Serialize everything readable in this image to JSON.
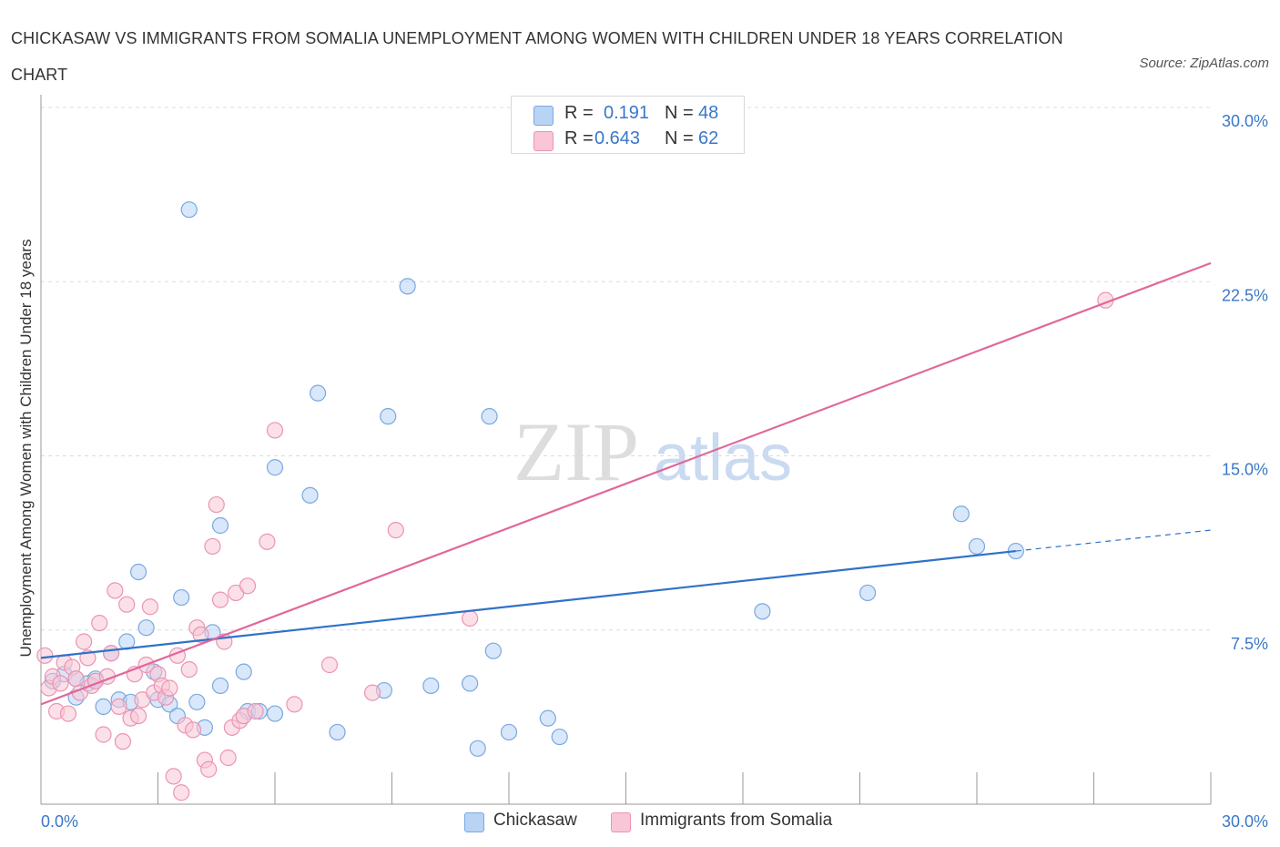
{
  "title": "CHICKASAW VS IMMIGRANTS FROM SOMALIA UNEMPLOYMENT AMONG WOMEN WITH CHILDREN UNDER 18 YEARS CORRELATION CHART",
  "source": "Source: ZipAtlas.com",
  "watermark": {
    "zip": "ZIP",
    "atlas": "atlas"
  },
  "stats": {
    "chickasaw": {
      "r_label": "R =",
      "r_value": "0.191",
      "n_label": "N =",
      "n_value": "48"
    },
    "somalia": {
      "r_label": "R =",
      "r_value": "0.643",
      "n_label": "N =",
      "n_value": "62"
    }
  },
  "legend": {
    "chickasaw": "Chickasaw",
    "somalia": "Immigrants from Somalia"
  },
  "colors": {
    "chickasaw_fill": "#b9d3f5",
    "chickasaw_stroke": "#7aa8e0",
    "chickasaw_line": "#2f72c9",
    "somalia_fill": "#f8c6d6",
    "somalia_stroke": "#eb94b2",
    "somalia_line": "#e0689a",
    "tick_label": "#3a78c9",
    "grid": "#dcdcdc"
  },
  "chart_data": {
    "type": "scatter",
    "title": "CHICKASAW VS IMMIGRANTS FROM SOMALIA UNEMPLOYMENT AMONG WOMEN WITH CHILDREN UNDER 18 YEARS CORRELATION CHART",
    "xlabel": "",
    "ylabel": "Unemployment Among Women with Children Under 18 years",
    "xlim": [
      0,
      30
    ],
    "ylim": [
      0,
      30
    ],
    "x_tick_labels": [
      "0.0%",
      "30.0%"
    ],
    "y_ticks": [
      7.5,
      15,
      22.5,
      30
    ],
    "y_tick_labels": [
      "7.5%",
      "15.0%",
      "22.5%",
      "30.0%"
    ],
    "grid": true,
    "legend_position": "bottom-center",
    "series": [
      {
        "name": "Chickasaw",
        "r": 0.191,
        "n": 48,
        "trend": {
          "x0": 0.0,
          "y0": 6.3,
          "x1": 25.0,
          "y1": 10.9,
          "dashed_to_x": 30.0,
          "dashed_to_y": 11.8
        },
        "points": [
          [
            0.3,
            5.3
          ],
          [
            0.6,
            5.6
          ],
          [
            0.9,
            5.4
          ],
          [
            0.9,
            4.6
          ],
          [
            1.2,
            5.2
          ],
          [
            1.4,
            5.4
          ],
          [
            1.6,
            4.2
          ],
          [
            1.8,
            6.5
          ],
          [
            2.0,
            4.5
          ],
          [
            2.2,
            7.0
          ],
          [
            2.3,
            4.4
          ],
          [
            2.5,
            10.0
          ],
          [
            2.7,
            7.6
          ],
          [
            2.9,
            5.7
          ],
          [
            3.0,
            4.5
          ],
          [
            3.3,
            4.3
          ],
          [
            3.5,
            3.8
          ],
          [
            3.6,
            8.9
          ],
          [
            3.8,
            25.6
          ],
          [
            4.0,
            4.4
          ],
          [
            4.2,
            3.3
          ],
          [
            4.4,
            7.4
          ],
          [
            4.6,
            5.1
          ],
          [
            4.6,
            12.0
          ],
          [
            5.2,
            5.7
          ],
          [
            5.3,
            4.0
          ],
          [
            5.6,
            4.0
          ],
          [
            6.0,
            3.9
          ],
          [
            6.0,
            14.5
          ],
          [
            6.9,
            13.3
          ],
          [
            7.1,
            17.7
          ],
          [
            7.6,
            3.1
          ],
          [
            8.8,
            4.9
          ],
          [
            8.9,
            16.7
          ],
          [
            9.4,
            22.3
          ],
          [
            10.0,
            5.1
          ],
          [
            11.0,
            5.2
          ],
          [
            11.2,
            2.4
          ],
          [
            11.5,
            16.7
          ],
          [
            11.6,
            6.6
          ],
          [
            12.0,
            3.1
          ],
          [
            13.0,
            3.7
          ],
          [
            13.3,
            2.9
          ],
          [
            18.5,
            8.3
          ],
          [
            21.2,
            9.1
          ],
          [
            23.6,
            12.5
          ],
          [
            24.0,
            11.1
          ],
          [
            25.0,
            10.9
          ]
        ]
      },
      {
        "name": "Immigrants from Somalia",
        "r": 0.643,
        "n": 62,
        "trend": {
          "x0": 0.0,
          "y0": 4.3,
          "x1": 30.0,
          "y1": 23.3
        },
        "points": [
          [
            0.1,
            6.4
          ],
          [
            0.2,
            5.0
          ],
          [
            0.3,
            5.5
          ],
          [
            0.4,
            4.0
          ],
          [
            0.5,
            5.2
          ],
          [
            0.6,
            6.1
          ],
          [
            0.7,
            3.9
          ],
          [
            0.8,
            5.9
          ],
          [
            0.9,
            5.4
          ],
          [
            1.0,
            4.8
          ],
          [
            1.1,
            7.0
          ],
          [
            1.2,
            6.3
          ],
          [
            1.3,
            5.1
          ],
          [
            1.4,
            5.3
          ],
          [
            1.5,
            7.8
          ],
          [
            1.6,
            3.0
          ],
          [
            1.7,
            5.5
          ],
          [
            1.8,
            6.5
          ],
          [
            1.9,
            9.2
          ],
          [
            2.0,
            4.2
          ],
          [
            2.1,
            2.7
          ],
          [
            2.2,
            8.6
          ],
          [
            2.3,
            3.7
          ],
          [
            2.4,
            5.6
          ],
          [
            2.5,
            3.8
          ],
          [
            2.6,
            4.5
          ],
          [
            2.7,
            6.0
          ],
          [
            2.8,
            8.5
          ],
          [
            2.9,
            4.8
          ],
          [
            3.0,
            5.6
          ],
          [
            3.1,
            5.1
          ],
          [
            3.2,
            4.6
          ],
          [
            3.3,
            5.0
          ],
          [
            3.4,
            1.2
          ],
          [
            3.5,
            6.4
          ],
          [
            3.6,
            0.5
          ],
          [
            3.7,
            3.4
          ],
          [
            3.8,
            5.8
          ],
          [
            3.9,
            3.2
          ],
          [
            4.0,
            7.6
          ],
          [
            4.1,
            7.3
          ],
          [
            4.2,
            1.9
          ],
          [
            4.3,
            1.5
          ],
          [
            4.4,
            11.1
          ],
          [
            4.5,
            12.9
          ],
          [
            4.6,
            8.8
          ],
          [
            4.7,
            7.0
          ],
          [
            4.8,
            2.0
          ],
          [
            4.9,
            3.3
          ],
          [
            5.0,
            9.1
          ],
          [
            5.1,
            3.6
          ],
          [
            5.2,
            3.8
          ],
          [
            5.3,
            9.4
          ],
          [
            5.5,
            4.0
          ],
          [
            5.8,
            11.3
          ],
          [
            6.0,
            16.1
          ],
          [
            6.5,
            4.3
          ],
          [
            7.4,
            6.0
          ],
          [
            8.5,
            4.8
          ],
          [
            9.1,
            11.8
          ],
          [
            11.0,
            8.0
          ],
          [
            27.3,
            21.7
          ]
        ]
      }
    ]
  }
}
